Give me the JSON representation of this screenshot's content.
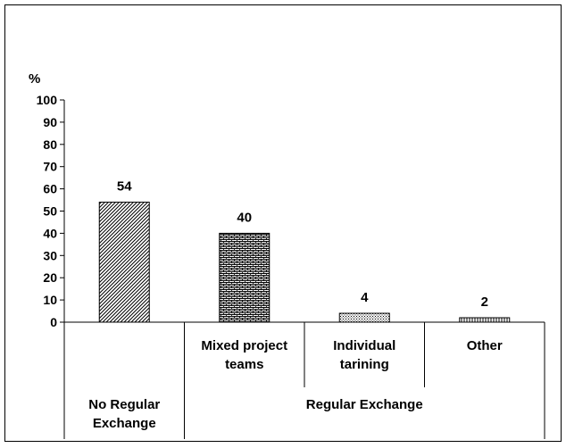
{
  "chart_data": {
    "type": "bar",
    "unit_label": "%",
    "ylim": [
      0,
      100
    ],
    "yticks": [
      0,
      10,
      20,
      30,
      40,
      50,
      60,
      70,
      80,
      90,
      100
    ],
    "categories": [
      [
        "No Regular",
        "Exchange"
      ],
      [
        "Mixed project",
        "teams"
      ],
      [
        "Individual",
        "tarining"
      ],
      [
        "Other"
      ]
    ],
    "values": [
      54,
      40,
      4,
      2
    ],
    "patterns": [
      "diagonal",
      "brick",
      "dots",
      "vertical"
    ],
    "group_labels": [
      {
        "text": [
          "No Regular",
          "Exchange"
        ],
        "span": [
          0,
          0
        ]
      },
      {
        "text": [
          "Regular Exchange"
        ],
        "span": [
          1,
          3
        ]
      }
    ],
    "grid": false,
    "legend": "none"
  }
}
